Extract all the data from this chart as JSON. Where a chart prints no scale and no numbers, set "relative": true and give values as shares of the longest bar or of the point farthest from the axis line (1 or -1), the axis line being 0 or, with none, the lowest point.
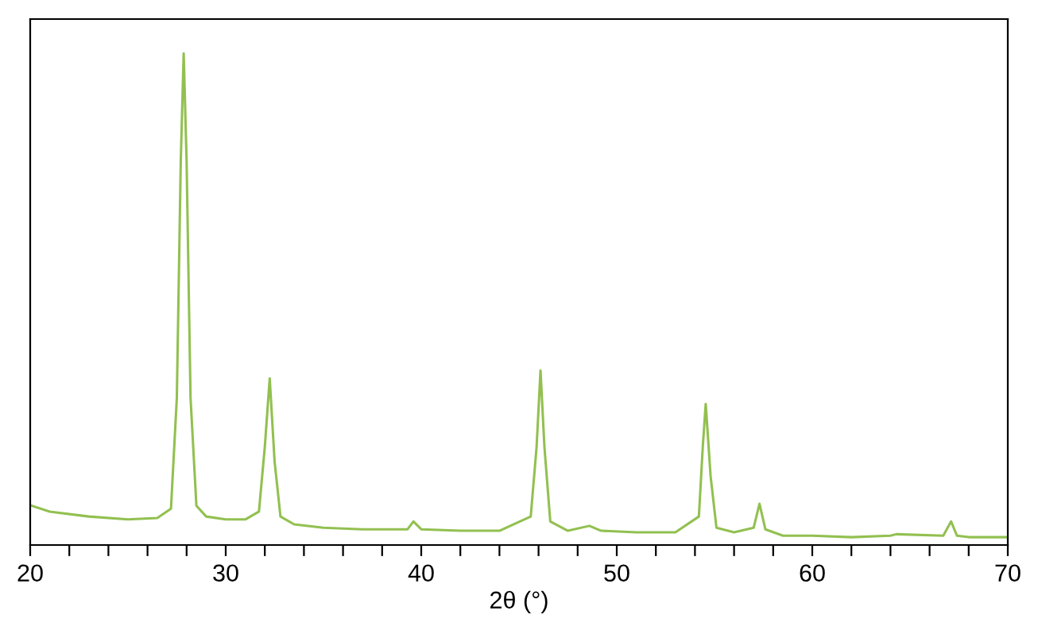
{
  "chart_data": {
    "type": "line",
    "relative": true,
    "xlabel": "2θ (°)",
    "xlim": [
      20,
      70
    ],
    "xticks": [
      20,
      {
        "value": 22,
        "label": null
      },
      {
        "value": 24,
        "label": null
      },
      {
        "value": 26,
        "label": null
      },
      {
        "value": 28,
        "label": null
      },
      30,
      {
        "value": 32,
        "label": null
      },
      {
        "value": 34,
        "label": null
      },
      {
        "value": 36,
        "label": null
      },
      {
        "value": 38,
        "label": null
      },
      40,
      {
        "value": 42,
        "label": null
      },
      {
        "value": 44,
        "label": null
      },
      {
        "value": 46,
        "label": null
      },
      {
        "value": 48,
        "label": null
      },
      50,
      {
        "value": 52,
        "label": null
      },
      {
        "value": 54,
        "label": null
      },
      {
        "value": 56,
        "label": null
      },
      {
        "value": 58,
        "label": null
      },
      60,
      {
        "value": 62,
        "label": null
      },
      {
        "value": 64,
        "label": null
      },
      {
        "value": 66,
        "label": null
      },
      {
        "value": 68,
        "label": null
      },
      70
    ],
    "tick_labels": "x",
    "grid": false,
    "marker": "none",
    "line_style": "solid",
    "series": [
      {
        "color": "#92c050",
        "x": [
          20,
          21,
          23,
          25,
          26.5,
          27.2,
          27.5,
          27.7,
          27.85,
          28.0,
          28.2,
          28.5,
          29,
          30,
          31,
          31.7,
          32.0,
          32.25,
          32.5,
          32.8,
          33.5,
          35,
          37,
          39.3,
          39.6,
          40,
          42,
          44,
          45.6,
          45.9,
          46.1,
          46.3,
          46.6,
          47.5,
          48.6,
          49.2,
          51,
          53,
          54.2,
          54.4,
          54.55,
          54.8,
          55.1,
          56,
          57.0,
          57.3,
          57.6,
          58.5,
          60,
          62,
          64,
          64.3,
          66.7,
          67.1,
          67.4,
          68,
          70
        ],
        "values": [
          0.081,
          0.068,
          0.058,
          0.052,
          0.055,
          0.074,
          0.3,
          0.78,
          1.0,
          0.78,
          0.3,
          0.08,
          0.058,
          0.052,
          0.052,
          0.068,
          0.2,
          0.339,
          0.17,
          0.058,
          0.042,
          0.035,
          0.032,
          0.032,
          0.048,
          0.032,
          0.029,
          0.029,
          0.058,
          0.2,
          0.355,
          0.2,
          0.048,
          0.029,
          0.039,
          0.029,
          0.026,
          0.026,
          0.058,
          0.2,
          0.287,
          0.14,
          0.035,
          0.026,
          0.035,
          0.084,
          0.032,
          0.019,
          0.019,
          0.016,
          0.019,
          0.022,
          0.019,
          0.048,
          0.019,
          0.016,
          0.016
        ]
      }
    ]
  }
}
